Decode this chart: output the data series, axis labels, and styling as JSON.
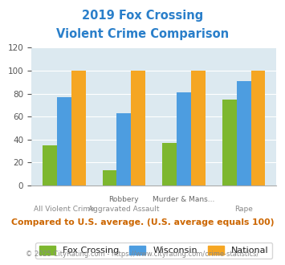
{
  "title_line1": "2019 Fox Crossing",
  "title_line2": "Violent Crime Comparison",
  "fox_crossing": [
    35,
    13,
    37,
    75
  ],
  "wisconsin": [
    77,
    63,
    81,
    91
  ],
  "national": [
    100,
    100,
    100,
    100
  ],
  "fox_color": "#7db72f",
  "wi_color": "#4d9de0",
  "nat_color": "#f5a623",
  "ylim": [
    0,
    120
  ],
  "yticks": [
    0,
    20,
    40,
    60,
    80,
    100,
    120
  ],
  "bg_color": "#dce9f0",
  "legend_labels": [
    "Fox Crossing",
    "Wisconsin",
    "National"
  ],
  "top_xlabels": [
    "",
    "Robbery",
    "Murder & Mans...",
    ""
  ],
  "bot_xlabels": [
    "All Violent Crime",
    "Aggravated Assault",
    "",
    "Rape"
  ],
  "note_text": "Compared to U.S. average. (U.S. average equals 100)",
  "footer_text": "© 2025 CityRating.com - https://www.cityrating.com/crime-statistics/",
  "title_color": "#2a7fca",
  "note_color": "#cc6600",
  "footer_color_left": "#888888",
  "footer_color_right": "#4d9de0",
  "bar_width": 0.24
}
